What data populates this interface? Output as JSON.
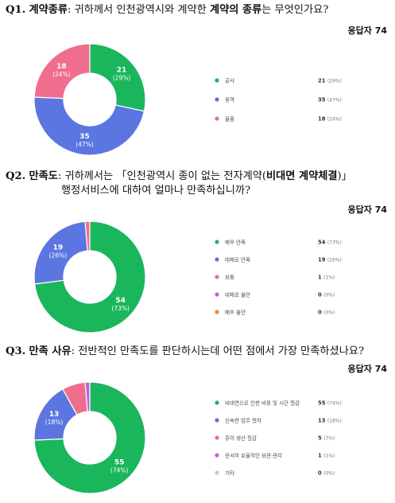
{
  "q1": {
    "num": "Q1.",
    "bold1": "계약종류",
    "p1": ": 귀하께서 인천광역시와 계약한",
    "bold2": "계약의 종류",
    "p2": "는 무엇인가요?",
    "respondents": "응답자 74"
  },
  "q2": {
    "num": "Q2.",
    "bold1": "만족도",
    "p1": ": 귀하께서는 「인천광역시 종이 없는 전자계약(",
    "bold2": "비대면 계약체결",
    "p2": ")」",
    "line2": "행정서비스에 대하여 얼마나 만족하십니까?",
    "respondents": "응답자 74"
  },
  "q3": {
    "num": "Q3.",
    "bold1": "만족 사유",
    "p1": ": 전반적인 만족도를 판단하시는데 어떤 점에서 가장 만족하셨나요?",
    "respondents": "응답자 74"
  },
  "chart_data": [
    {
      "type": "pie",
      "categories": [
        "공사",
        "용역",
        "물품"
      ],
      "values": [
        21,
        35,
        18
      ],
      "percent_labels": [
        "(29%)",
        "(47%)",
        "(24%)"
      ],
      "legend_values": [
        "21 (29%)",
        "35 (47%)",
        "18 (24%)"
      ],
      "colors": [
        "#1ab65c",
        "#5b76e0",
        "#f06e8d"
      ]
    },
    {
      "type": "pie",
      "categories": [
        "매우 만족",
        "대체로 만족",
        "보통",
        "대체로 불만",
        "매우 불만"
      ],
      "values": [
        54,
        19,
        1,
        0,
        0
      ],
      "percent_labels": [
        "(73%)",
        "(26%)",
        "(1%)",
        "(0%)",
        "(0%)"
      ],
      "legend_values": [
        "54 (73%)",
        "19 (26%)",
        "1 (1%)",
        "0 (0%)",
        "0 (0%)"
      ],
      "colors": [
        "#1ab65c",
        "#5b76e0",
        "#f06e8d",
        "#b865d8",
        "#f08a3c"
      ]
    },
    {
      "type": "pie",
      "categories": [
        "비대면으로 인한 비용 및 시간 절감",
        "신속한 업무 절차",
        "종이 생산 절감",
        "문서의 효율적인 보관·관리",
        "기타"
      ],
      "values": [
        55,
        13,
        5,
        1,
        0
      ],
      "percent_labels": [
        "(74%)",
        "(18%)",
        "(7%)",
        "(1%)",
        "(0%)"
      ],
      "legend_values": [
        "55 (74%)",
        "13 (18%)",
        "5 (7%)",
        "1 (1%)",
        "0 (0%)"
      ],
      "colors": [
        "#1ab65c",
        "#5b76e0",
        "#f06e8d",
        "#b865d8",
        "#c8c8c8"
      ]
    }
  ]
}
